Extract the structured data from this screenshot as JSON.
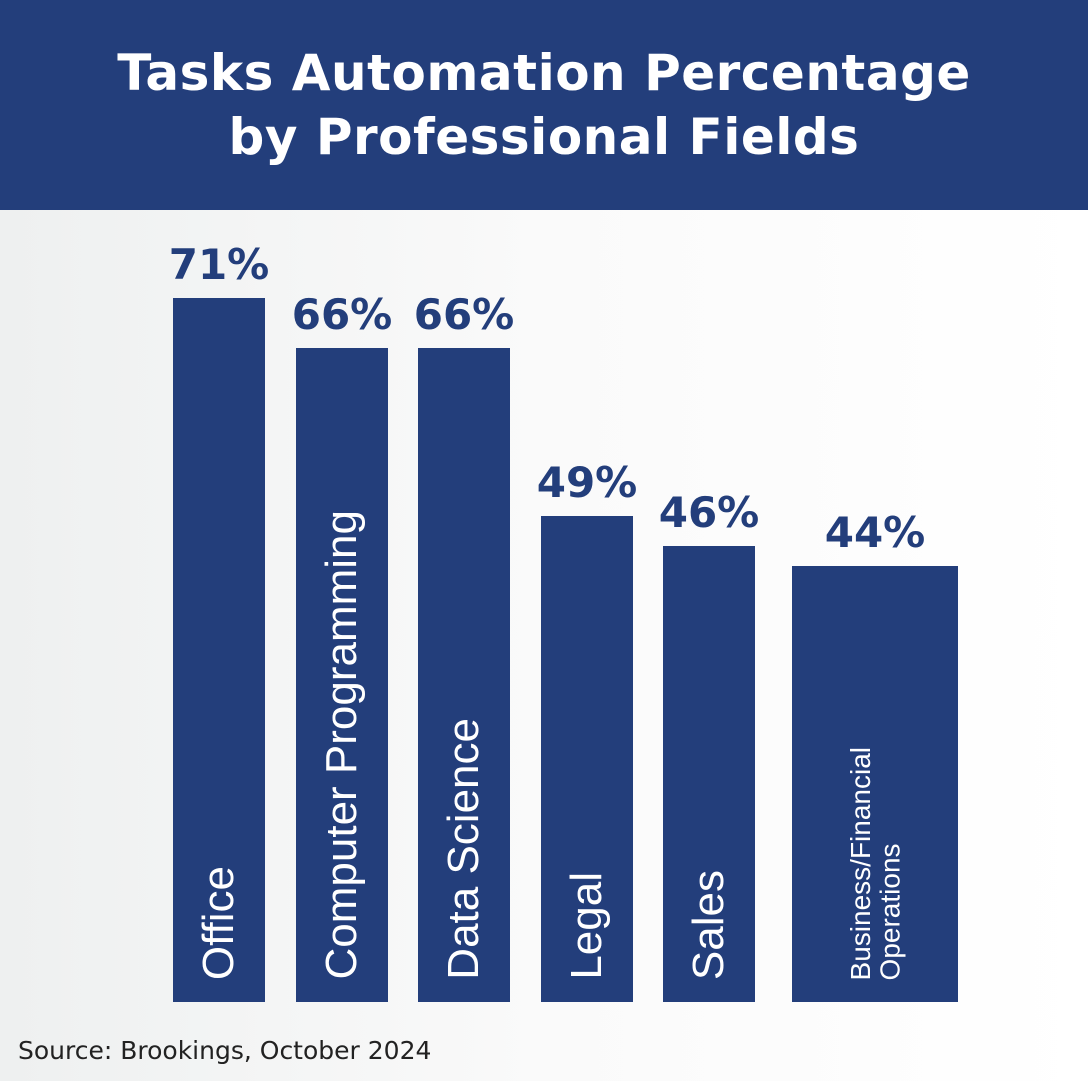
{
  "chart_data": {
    "type": "bar",
    "title": "Tasks Automation Percentage by Professional Fields",
    "title_lines": [
      "Tasks Automation Percentage",
      "by Professional Fields"
    ],
    "categories": [
      "Office",
      "Computer Programming",
      "Data Science",
      "Legal",
      "Sales",
      "Business/Financial\nOperations"
    ],
    "values": [
      71,
      66,
      66,
      49,
      46,
      44
    ],
    "value_labels": [
      "71%",
      "66%",
      "66%",
      "49%",
      "46%",
      "44%"
    ],
    "unit": "%",
    "xlabel": "",
    "ylabel": "",
    "grid": false,
    "bar_color": "#233e7b",
    "source": "Source: Brookings, October 2024"
  }
}
